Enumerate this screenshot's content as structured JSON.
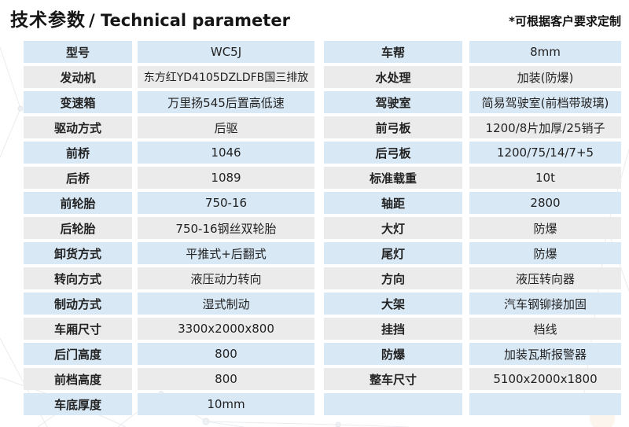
{
  "header": {
    "title_zh": "技术参数",
    "title_en": "/ Technical parameter",
    "note": "*可根据客户要求定制"
  },
  "colors": {
    "row_blue": "#d9e8f5",
    "row_gray": "#ebebeb",
    "text": "#222222"
  },
  "tables": [
    {
      "name": "left",
      "rows": [
        {
          "label": "型号",
          "value": "WC5J"
        },
        {
          "label": "发动机",
          "value": "东方红YD4105DZLDFB国三排放"
        },
        {
          "label": "变速箱",
          "value": "万里扬545后置高低速"
        },
        {
          "label": "驱动方式",
          "value": "后驱"
        },
        {
          "label": "前桥",
          "value": "1046"
        },
        {
          "label": "后桥",
          "value": "1089"
        },
        {
          "label": "前轮胎",
          "value": "750-16"
        },
        {
          "label": "后轮胎",
          "value": "750-16钢丝双轮胎"
        },
        {
          "label": "卸货方式",
          "value": "平推式+后翻式"
        },
        {
          "label": "转向方式",
          "value": "液压动力转向"
        },
        {
          "label": "制动方式",
          "value": "湿式制动"
        },
        {
          "label": "车厢尺寸",
          "value": "3300x2000x800"
        },
        {
          "label": "后门高度",
          "value": "800"
        },
        {
          "label": "前档高度",
          "value": "800"
        },
        {
          "label": "车底厚度",
          "value": "10mm"
        }
      ]
    },
    {
      "name": "right",
      "rows": [
        {
          "label": "车帮",
          "value": "8mm"
        },
        {
          "label": "水处理",
          "value": "加装(防爆)"
        },
        {
          "label": "驾驶室",
          "value": "简易驾驶室(前档带玻璃)"
        },
        {
          "label": "前弓板",
          "value": "1200/8片加厚/25销子"
        },
        {
          "label": "后弓板",
          "value": "1200/75/14/7+5"
        },
        {
          "label": "标准载重",
          "value": "10t"
        },
        {
          "label": "轴距",
          "value": "2800"
        },
        {
          "label": "大灯",
          "value": "防爆"
        },
        {
          "label": "尾灯",
          "value": "防爆"
        },
        {
          "label": "方向",
          "value": "液压转向器"
        },
        {
          "label": "大架",
          "value": "汽车钢铆接加固"
        },
        {
          "label": "挂挡",
          "value": "档线"
        },
        {
          "label": "防爆",
          "value": "加装瓦斯报警器"
        },
        {
          "label": "整车尺寸",
          "value": "5100x2000x1800"
        },
        {
          "label": "",
          "value": ""
        }
      ]
    }
  ]
}
